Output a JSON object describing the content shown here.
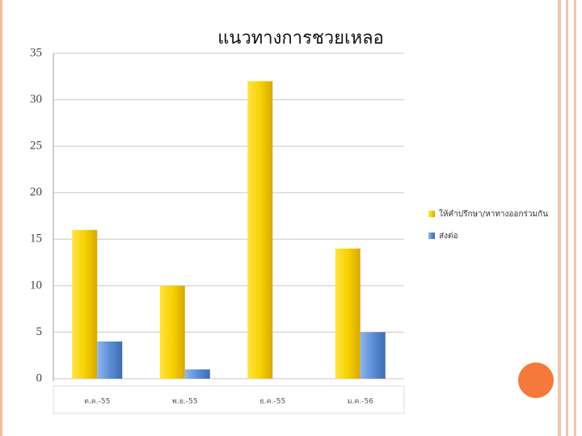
{
  "chart_data": {
    "type": "bar",
    "title": "แนวทางการชวยเหลอ",
    "categories": [
      "ต.ค.-55",
      "พ.ย.-55",
      "ธ.ค.-55",
      "ม.ค.-56"
    ],
    "series": [
      {
        "name": "ให้คำปรึกษา/หาทางออกร่วมกัน",
        "color": "#f2c500",
        "values": [
          16,
          10,
          32,
          14
        ]
      },
      {
        "name": "ส่งต่อ",
        "color": "#5b8ed6",
        "values": [
          4,
          1,
          0,
          5
        ]
      }
    ],
    "ylim": [
      0,
      35
    ],
    "yticks": [
      0,
      5,
      10,
      15,
      20,
      25,
      30,
      35
    ],
    "grid": true,
    "legend": "right"
  }
}
